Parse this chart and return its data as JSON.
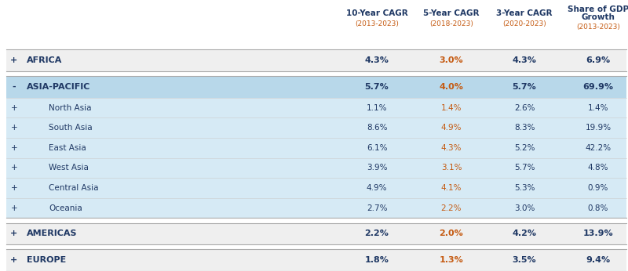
{
  "header": [
    {
      "label": "10-Year CAGR",
      "sub": "(2013-2023)"
    },
    {
      "label": "5-Year CAGR",
      "sub": "(2018-2023)"
    },
    {
      "label": "3-Year CAGR",
      "sub": "(2020-2023)"
    },
    {
      "label": "Share of GDP\nGrowth",
      "sub": "(2013-2023)"
    }
  ],
  "rows": [
    {
      "symbol": "+",
      "name": "AFRICA",
      "indent": 0,
      "vals": [
        "4.3%",
        "3.0%",
        "4.3%",
        "6.9%"
      ],
      "bg": "#efefef",
      "bold": true,
      "border_top": true,
      "border_bottom": true,
      "gap_before": false,
      "gap_after": true
    },
    {
      "symbol": "-",
      "name": "ASIA-PACIFIC",
      "indent": 0,
      "vals": [
        "5.7%",
        "4.0%",
        "5.7%",
        "69.9%"
      ],
      "bg": "#b8d8ea",
      "bold": true,
      "border_top": true,
      "border_bottom": false,
      "gap_before": false,
      "gap_after": false
    },
    {
      "symbol": "+",
      "name": "North Asia",
      "indent": 1,
      "vals": [
        "1.1%",
        "1.4%",
        "2.6%",
        "1.4%"
      ],
      "bg": "#d6eaf5",
      "bold": false,
      "border_top": false,
      "border_bottom": false,
      "gap_before": false,
      "gap_after": false
    },
    {
      "symbol": "+",
      "name": "South Asia",
      "indent": 1,
      "vals": [
        "8.6%",
        "4.9%",
        "8.3%",
        "19.9%"
      ],
      "bg": "#d6eaf5",
      "bold": false,
      "border_top": false,
      "border_bottom": false,
      "gap_before": false,
      "gap_after": false
    },
    {
      "symbol": "+",
      "name": "East Asia",
      "indent": 1,
      "vals": [
        "6.1%",
        "4.3%",
        "5.2%",
        "42.2%"
      ],
      "bg": "#d6eaf5",
      "bold": false,
      "border_top": false,
      "border_bottom": false,
      "gap_before": false,
      "gap_after": false
    },
    {
      "symbol": "+",
      "name": "West Asia",
      "indent": 1,
      "vals": [
        "3.9%",
        "3.1%",
        "5.7%",
        "4.8%"
      ],
      "bg": "#d6eaf5",
      "bold": false,
      "border_top": false,
      "border_bottom": false,
      "gap_before": false,
      "gap_after": false
    },
    {
      "symbol": "+",
      "name": "Central Asia",
      "indent": 1,
      "vals": [
        "4.9%",
        "4.1%",
        "5.3%",
        "0.9%"
      ],
      "bg": "#d6eaf5",
      "bold": false,
      "border_top": false,
      "border_bottom": false,
      "gap_before": false,
      "gap_after": false
    },
    {
      "symbol": "+",
      "name": "Oceania",
      "indent": 1,
      "vals": [
        "2.7%",
        "2.2%",
        "3.0%",
        "0.8%"
      ],
      "bg": "#d6eaf5",
      "bold": false,
      "border_top": false,
      "border_bottom": true,
      "gap_before": false,
      "gap_after": true
    },
    {
      "symbol": "+",
      "name": "AMERICAS",
      "indent": 0,
      "vals": [
        "2.2%",
        "2.0%",
        "4.2%",
        "13.9%"
      ],
      "bg": "#efefef",
      "bold": true,
      "border_top": true,
      "border_bottom": true,
      "gap_before": false,
      "gap_after": true
    },
    {
      "symbol": "+",
      "name": "EUROPE",
      "indent": 0,
      "vals": [
        "1.8%",
        "1.3%",
        "3.5%",
        "9.4%"
      ],
      "bg": "#efefef",
      "bold": true,
      "border_top": true,
      "border_bottom": true,
      "gap_before": false,
      "gap_after": false
    }
  ],
  "header_color": "#1f3864",
  "header_sub_color": "#c55a11",
  "col1_color": "#1f3864",
  "col2_color": "#c55a11",
  "col3_color": "#1f3864",
  "col4_color": "#1f3864",
  "name_color": "#1f3864",
  "border_color": "#aaaaaa",
  "fig_w": 8.0,
  "fig_h": 3.46,
  "dpi": 100
}
